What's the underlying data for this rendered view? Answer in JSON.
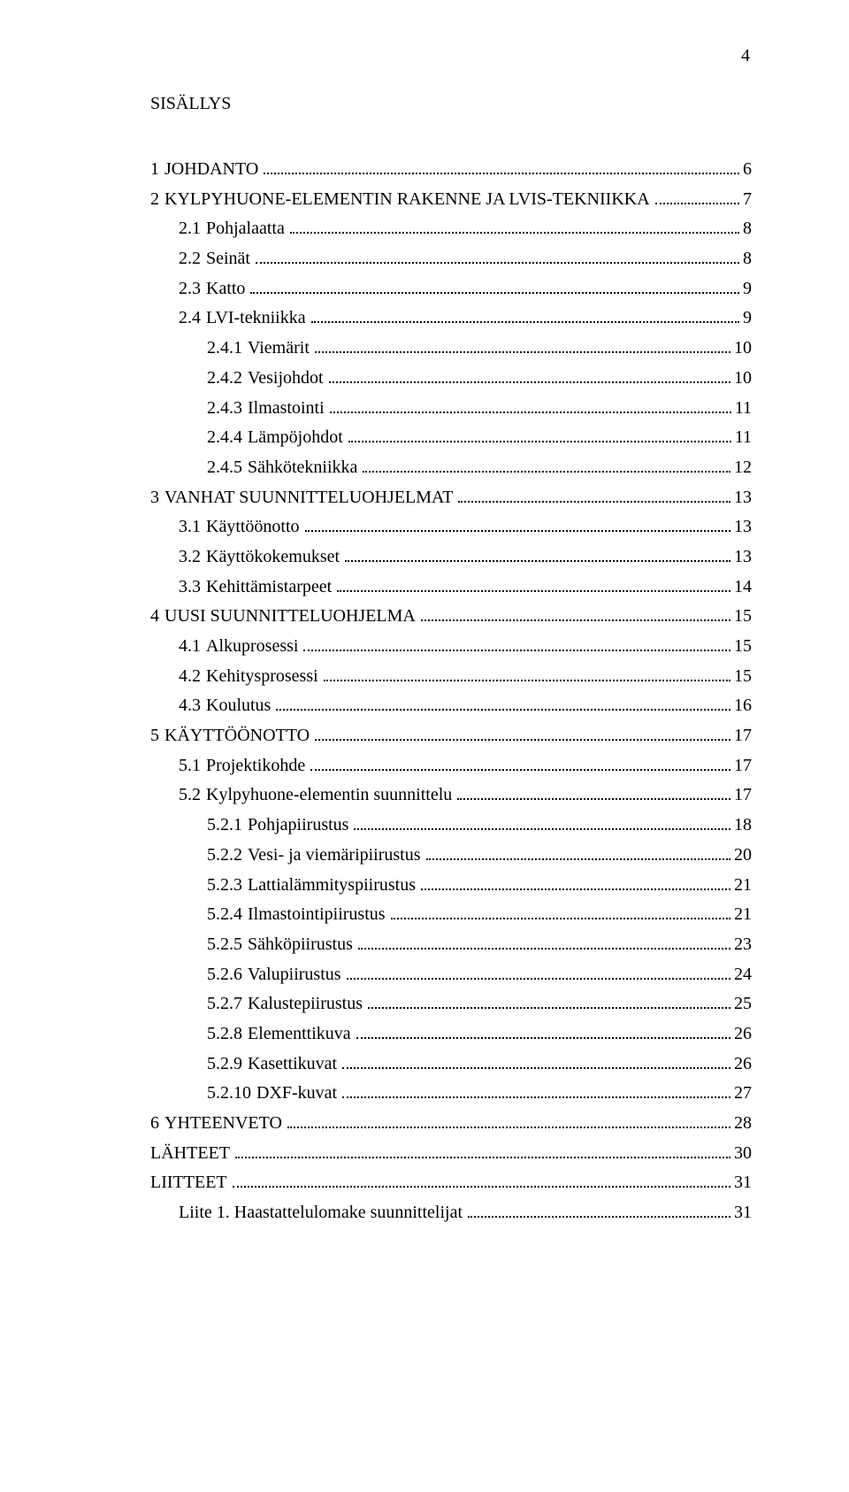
{
  "page_number_top": "4",
  "title": "SISÄLLYS",
  "toc": [
    {
      "indent": 0,
      "num": "1",
      "label": "JOHDANTO",
      "page": "6"
    },
    {
      "indent": 0,
      "num": "2",
      "label": "KYLPYHUONE-ELEMENTIN RAKENNE JA LVIS-TEKNIIKKA",
      "page": "7"
    },
    {
      "indent": 1,
      "num": "2.1",
      "label": "Pohjalaatta",
      "page": "8"
    },
    {
      "indent": 1,
      "num": "2.2",
      "label": "Seinät",
      "page": "8"
    },
    {
      "indent": 1,
      "num": "2.3",
      "label": "Katto",
      "page": "9"
    },
    {
      "indent": 1,
      "num": "2.4",
      "label": "LVI-tekniikka",
      "page": "9"
    },
    {
      "indent": 2,
      "num": "2.4.1",
      "label": "Viemärit",
      "page": "10"
    },
    {
      "indent": 2,
      "num": "2.4.2",
      "label": "Vesijohdot",
      "page": "10"
    },
    {
      "indent": 2,
      "num": "2.4.3",
      "label": "Ilmastointi",
      "page": "11"
    },
    {
      "indent": 2,
      "num": "2.4.4",
      "label": "Lämpöjohdot",
      "page": "11"
    },
    {
      "indent": 2,
      "num": "2.4.5",
      "label": "Sähkötekniikka",
      "page": "12"
    },
    {
      "indent": 0,
      "num": "3",
      "label": "VANHAT SUUNNITTELUOHJELMAT",
      "page": "13"
    },
    {
      "indent": 1,
      "num": "3.1",
      "label": "Käyttöönotto",
      "page": "13"
    },
    {
      "indent": 1,
      "num": "3.2",
      "label": "Käyttökokemukset",
      "page": "13"
    },
    {
      "indent": 1,
      "num": "3.3",
      "label": "Kehittämistarpeet",
      "page": "14"
    },
    {
      "indent": 0,
      "num": "4",
      "label": "UUSI SUUNNITTELUOHJELMA",
      "page": "15"
    },
    {
      "indent": 1,
      "num": "4.1",
      "label": "Alkuprosessi",
      "page": "15"
    },
    {
      "indent": 1,
      "num": "4.2",
      "label": "Kehitysprosessi",
      "page": "15"
    },
    {
      "indent": 1,
      "num": "4.3",
      "label": "Koulutus",
      "page": "16"
    },
    {
      "indent": 0,
      "num": "5",
      "label": "KÄYTTÖÖNOTTO",
      "page": "17"
    },
    {
      "indent": 1,
      "num": "5.1",
      "label": "Projektikohde",
      "page": "17"
    },
    {
      "indent": 1,
      "num": "5.2",
      "label": "Kylpyhuone-elementin suunnittelu",
      "page": "17"
    },
    {
      "indent": 2,
      "num": "5.2.1",
      "label": "Pohjapiirustus",
      "page": "18"
    },
    {
      "indent": 2,
      "num": "5.2.2",
      "label": "Vesi- ja viemäripiirustus",
      "page": "20"
    },
    {
      "indent": 2,
      "num": "5.2.3",
      "label": "Lattialämmityspiirustus",
      "page": "21"
    },
    {
      "indent": 2,
      "num": "5.2.4",
      "label": "Ilmastointipiirustus",
      "page": "21"
    },
    {
      "indent": 2,
      "num": "5.2.5",
      "label": "Sähköpiirustus",
      "page": "23"
    },
    {
      "indent": 2,
      "num": "5.2.6",
      "label": "Valupiirustus",
      "page": "24"
    },
    {
      "indent": 2,
      "num": "5.2.7",
      "label": "Kalustepiirustus",
      "page": "25"
    },
    {
      "indent": 2,
      "num": "5.2.8",
      "label": "Elementtikuva",
      "page": "26"
    },
    {
      "indent": 2,
      "num": "5.2.9",
      "label": "Kasettikuvat",
      "page": "26"
    },
    {
      "indent": 2,
      "num": "5.2.10",
      "label": "DXF-kuvat",
      "page": "27"
    },
    {
      "indent": 0,
      "num": "6",
      "label": "YHTEENVETO",
      "page": "28"
    },
    {
      "indent": 0,
      "num": "",
      "label": "LÄHTEET",
      "page": "30"
    },
    {
      "indent": 0,
      "num": "",
      "label": "LIITTEET",
      "page": "31"
    },
    {
      "indent": 1,
      "num": "",
      "label": "Liite 1. Haastattelulomake suunnittelijat",
      "page": "31"
    }
  ]
}
